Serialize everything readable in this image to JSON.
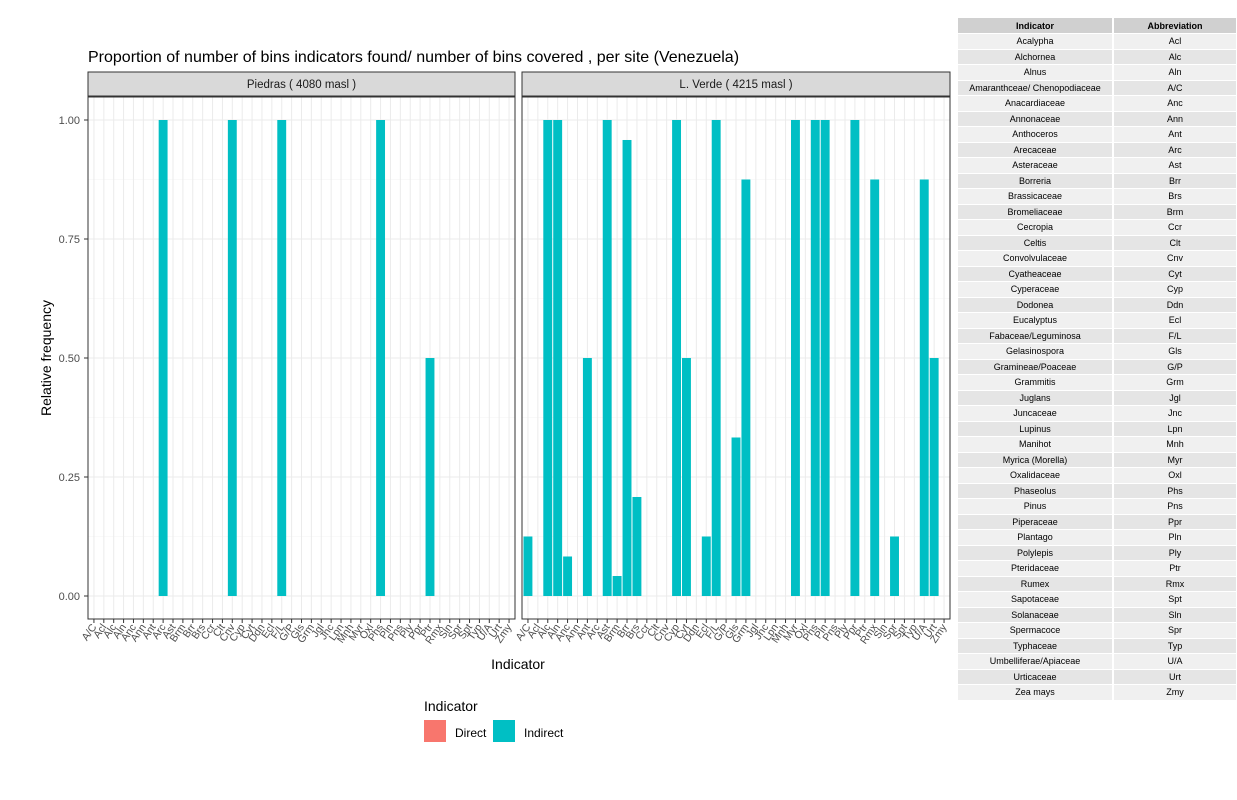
{
  "chart_data": {
    "type": "bar",
    "title": "Proportion of number of bins indicators found/ number of bins covered , per site (Venezuela)",
    "xlabel": "Indicator",
    "ylabel": "Relative frequency",
    "ylim": [
      0,
      1.05
    ],
    "yticks": [
      "0.00",
      "0.25",
      "0.50",
      "0.75",
      "1.00"
    ],
    "ytick_values": [
      0,
      0.25,
      0.5,
      0.75,
      1.0
    ],
    "grid": true,
    "categories": [
      "A/C",
      "Acl",
      "Alc",
      "Aln",
      "Anc",
      "Ann",
      "Ant",
      "Arc",
      "Ast",
      "Brm",
      "Brr",
      "Brs",
      "Ccr",
      "Clt",
      "Cnv",
      "Cyp",
      "Cyt",
      "Ddn",
      "Ecl",
      "F/L",
      "G/P",
      "Gls",
      "Grm",
      "Jgl",
      "Jnc",
      "Lpn",
      "Mnh",
      "Myr",
      "Oxl",
      "Phs",
      "Pln",
      "Pns",
      "Ply",
      "Ppr",
      "Ptr",
      "Rmx",
      "Sln",
      "Spr",
      "Spt",
      "Typ",
      "U/A",
      "Urt",
      "Zmy"
    ],
    "legend": {
      "title": "Indicator",
      "entries": [
        {
          "label": "Direct",
          "color": "#f8766d"
        },
        {
          "label": "Indirect",
          "color": "#00bfc4"
        }
      ],
      "position": "bottom"
    },
    "panels": [
      {
        "label": "Piedras ( 4080 masl )",
        "series": [
          {
            "name": "Indirect",
            "color": "#00bfc4",
            "values": {
              "Arc": 1.0,
              "Cnv": 1.0,
              "F/L": 1.0,
              "Phs": 1.0,
              "Ptr": 0.5
            }
          }
        ]
      },
      {
        "label": "L. Verde ( 4215 masl )",
        "series": [
          {
            "name": "Indirect",
            "color": "#00bfc4",
            "values": {
              "A/C": 0.125,
              "Alc": 1.0,
              "Aln": 1.0,
              "Anc": 0.083,
              "Ant": 0.5,
              "Ast": 1.0,
              "Brm": 0.042,
              "Brr": 0.958,
              "Brs": 0.208,
              "Cyp": 1.0,
              "Cyt": 0.5,
              "Ecl": 0.125,
              "F/L": 1.0,
              "Gls": 0.333,
              "Grm": 0.875,
              "Myr": 1.0,
              "Phs": 1.0,
              "Pln": 1.0,
              "Ppr": 1.0,
              "Rmx": 0.875,
              "Spr": 0.125,
              "U/A": 0.875,
              "Urt": 0.5
            }
          }
        ]
      }
    ]
  },
  "table": {
    "headers": [
      "Indicator",
      "Abbreviation"
    ],
    "rows": [
      [
        "Acalypha",
        "Acl"
      ],
      [
        "Alchornea",
        "Alc"
      ],
      [
        "Alnus",
        "Aln"
      ],
      [
        "Amaranthceae/ Chenopodiaceae",
        "A/C"
      ],
      [
        "Anacardiaceae",
        "Anc"
      ],
      [
        "Annonaceae",
        "Ann"
      ],
      [
        "Anthoceros",
        "Ant"
      ],
      [
        "Arecaceae",
        "Arc"
      ],
      [
        "Asteraceae",
        "Ast"
      ],
      [
        "Borreria",
        "Brr"
      ],
      [
        "Brassicaceae",
        "Brs"
      ],
      [
        "Bromeliaceae",
        "Brm"
      ],
      [
        "Cecropia",
        "Ccr"
      ],
      [
        "Celtis",
        "Clt"
      ],
      [
        "Convolvulaceae",
        "Cnv"
      ],
      [
        "Cyatheaceae",
        "Cyt"
      ],
      [
        "Cyperaceae",
        "Cyp"
      ],
      [
        "Dodonea",
        "Ddn"
      ],
      [
        "Eucalyptus",
        "Ecl"
      ],
      [
        "Fabaceae/Leguminosa",
        "F/L"
      ],
      [
        "Gelasinospora",
        "Gls"
      ],
      [
        "Gramineae/Poaceae",
        "G/P"
      ],
      [
        "Grammitis",
        "Grm"
      ],
      [
        "Juglans",
        "Jgl"
      ],
      [
        "Juncaceae",
        "Jnc"
      ],
      [
        "Lupinus",
        "Lpn"
      ],
      [
        "Manihot",
        "Mnh"
      ],
      [
        "Myrica (Morella)",
        "Myr"
      ],
      [
        "Oxalidaceae",
        "Oxl"
      ],
      [
        "Phaseolus",
        "Phs"
      ],
      [
        "Pinus",
        "Pns"
      ],
      [
        "Piperaceae",
        "Ppr"
      ],
      [
        "Plantago",
        "Pln"
      ],
      [
        "Polylepis",
        "Ply"
      ],
      [
        "Pteridaceae",
        "Ptr"
      ],
      [
        "Rumex",
        "Rmx"
      ],
      [
        "Sapotaceae",
        "Spt"
      ],
      [
        "Solanaceae",
        "Sln"
      ],
      [
        "Spermacoce",
        "Spr"
      ],
      [
        "Typhaceae",
        "Typ"
      ],
      [
        "Umbelliferae/Apiaceae",
        "U/A"
      ],
      [
        "Urticaceae",
        "Urt"
      ],
      [
        "Zea mays",
        "Zmy"
      ]
    ]
  }
}
